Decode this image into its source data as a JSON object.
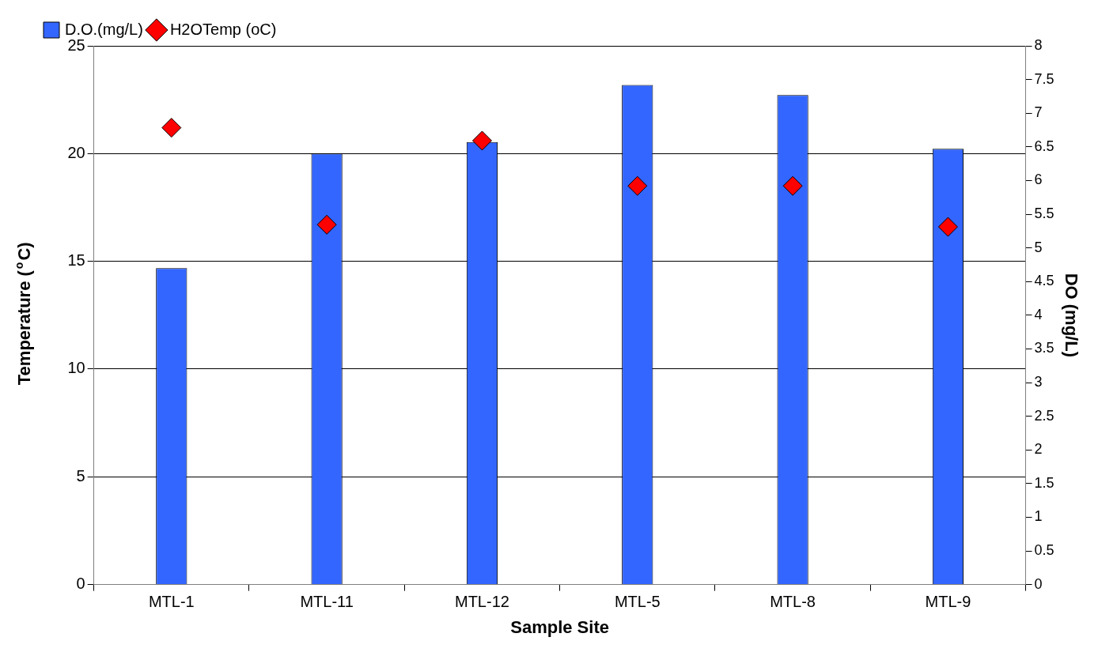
{
  "chart_data": {
    "type": "bar",
    "xlabel": "Sample Site",
    "ylabel": "Temperature ($^{o}$C)",
    "y2label": "DO (mg/L)",
    "categories": [
      "MTL-1",
      "MTL-11",
      "MTL-12",
      "MTL-5",
      "MTL-8",
      "MTL-9"
    ],
    "series": [
      {
        "name": "D.O.(mg/L)",
        "axis": "y2",
        "color": "#3366ff",
        "values": [
          4.7,
          6.4,
          6.57,
          7.42,
          7.27,
          6.47
        ]
      },
      {
        "name": "H2OTemp (oC)",
        "type": "scatter",
        "marker": "diamond",
        "color": "#ff0000",
        "values": [
          21.2,
          16.7,
          20.6,
          18.5,
          18.5,
          16.6
        ]
      }
    ],
    "ylim": [
      0,
      25
    ],
    "yticks": [
      0,
      5,
      10,
      15,
      20,
      25
    ],
    "y2lim": [
      0,
      8
    ],
    "y2ticks": [
      0,
      0.5,
      1,
      1.5,
      2,
      2.5,
      3,
      3.5,
      4,
      4.5,
      5,
      5.5,
      6,
      6.5,
      7,
      7.5,
      8
    ],
    "grid": "y",
    "legend": "top left"
  }
}
